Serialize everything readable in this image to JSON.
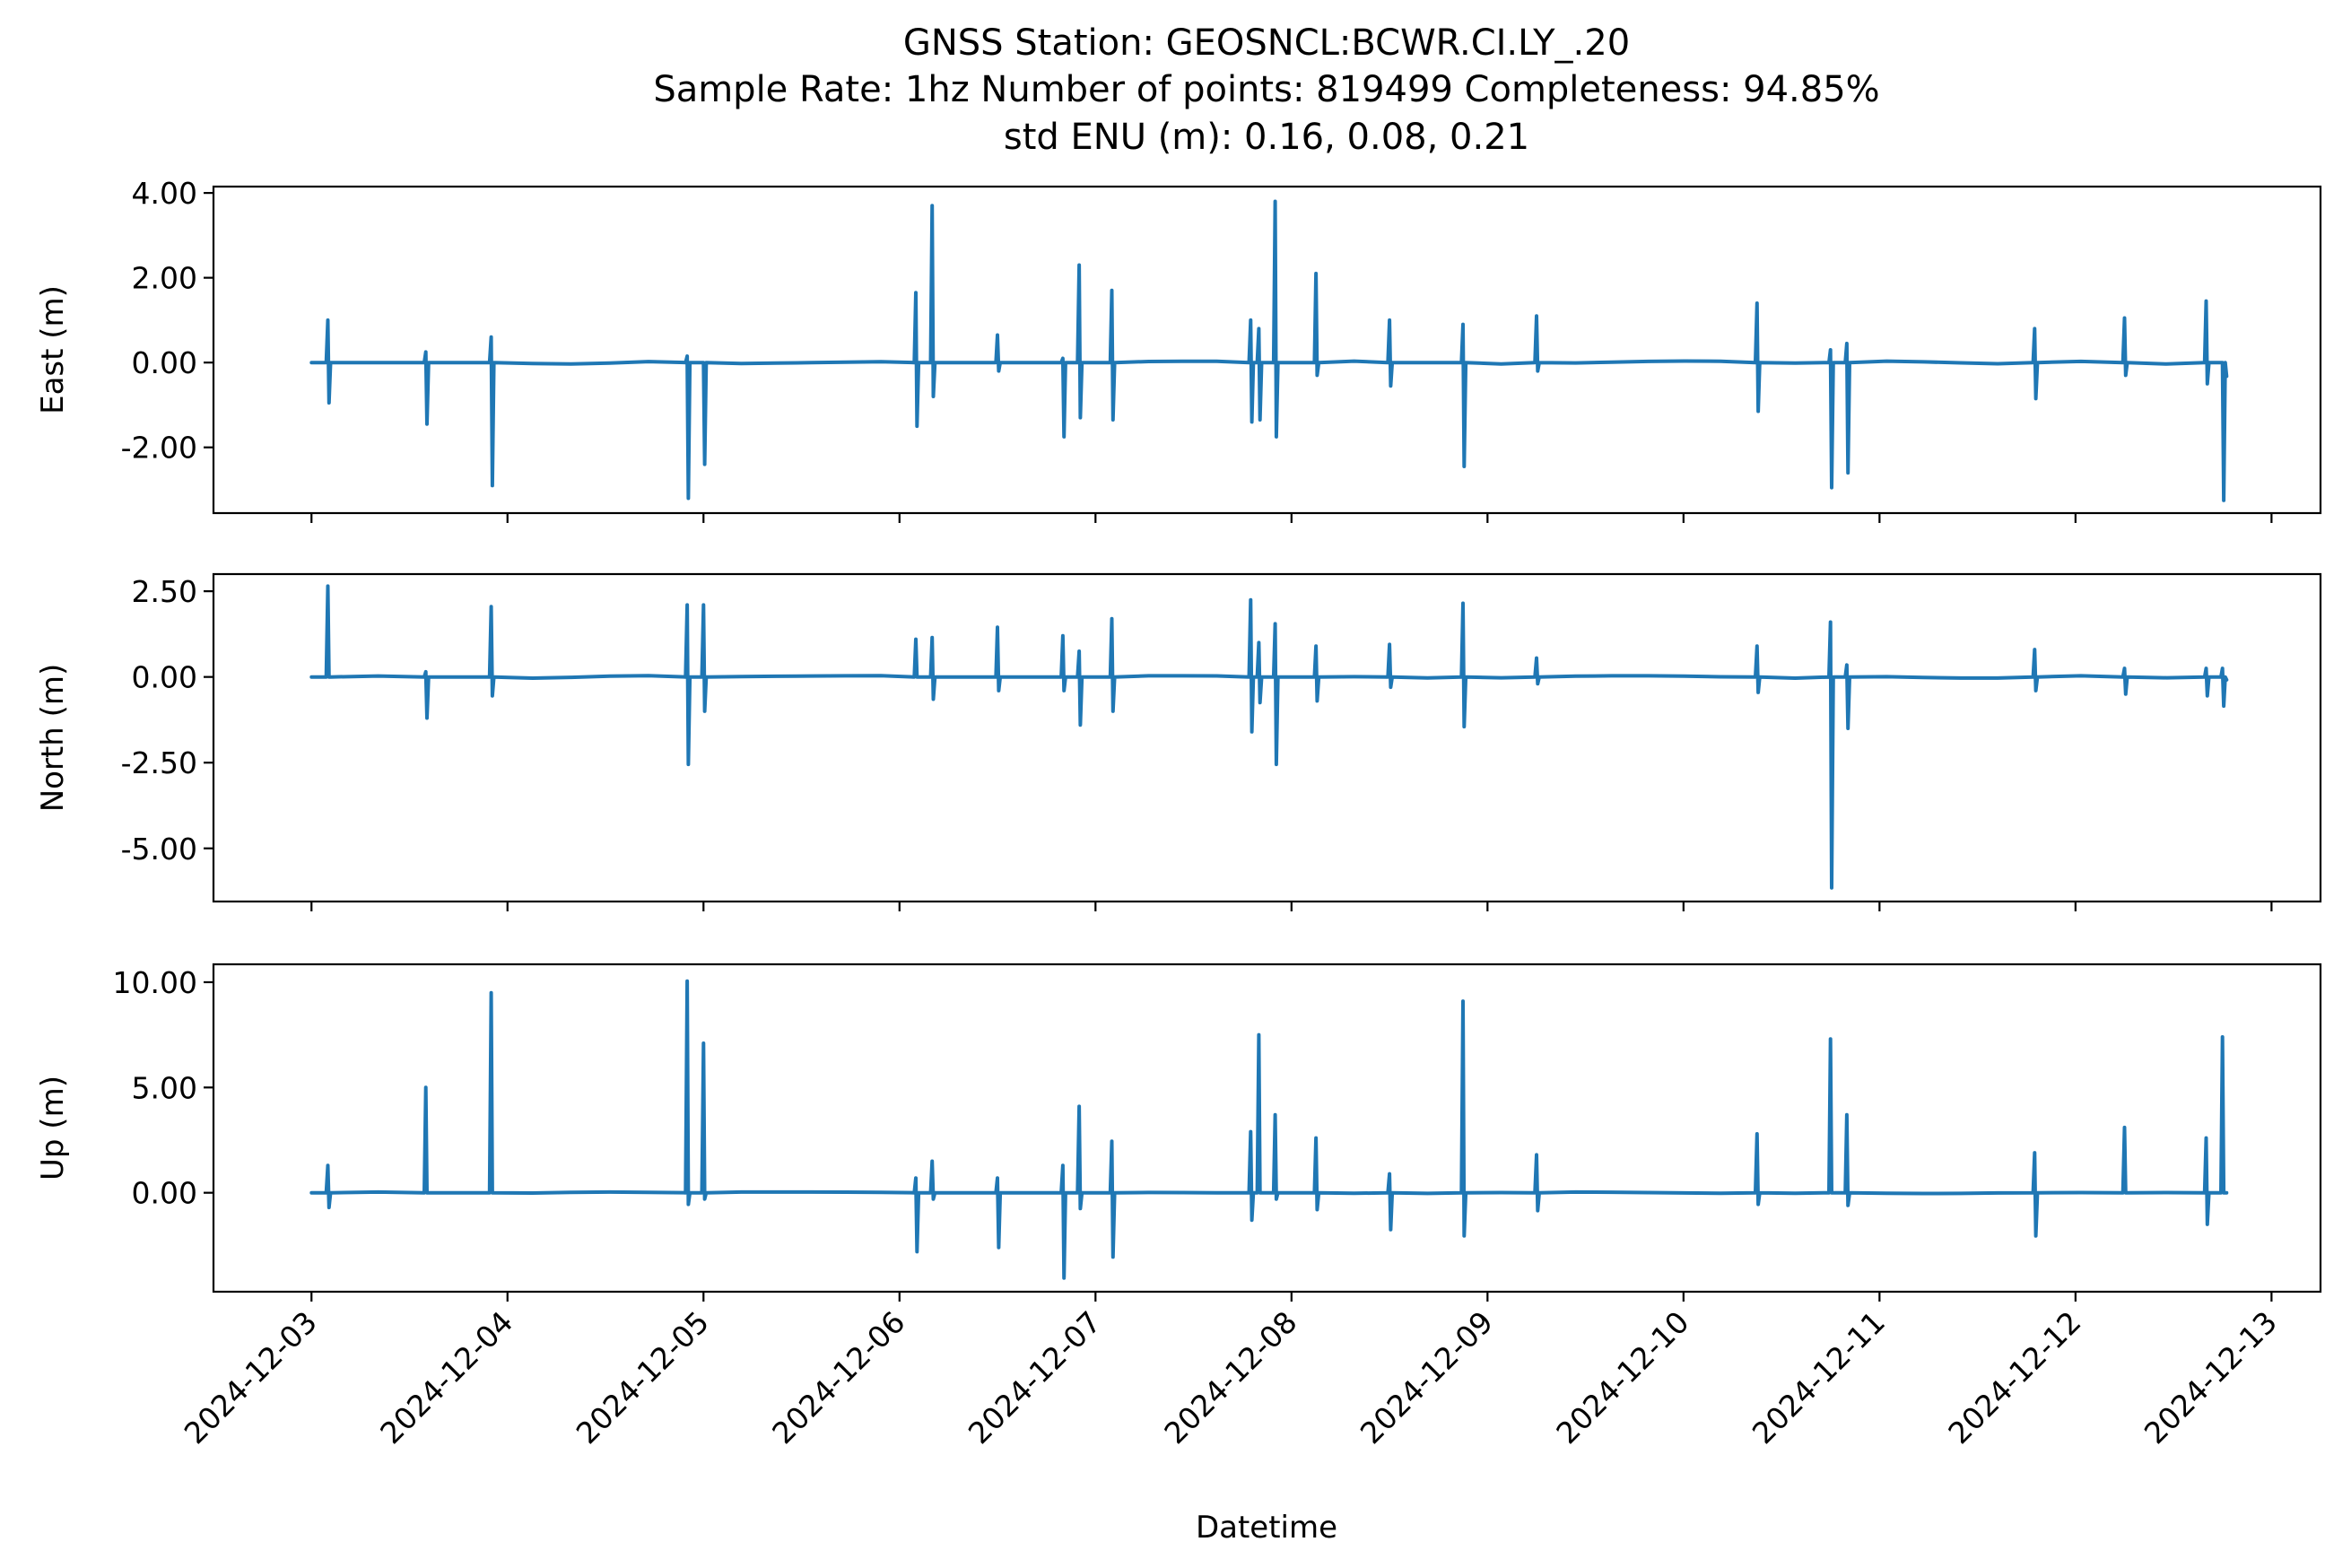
{
  "title_lines": [
    "GNSS Station: GEOSNCL:BCWR.CI.LY_.20",
    "Sample Rate: 1hz   Number of points: 819499    Completeness:  94.85%",
    "std ENU (m):  0.16, 0.08, 0.21"
  ],
  "chart_data": {
    "type": "line",
    "xlabel": "Datetime",
    "x_ticks": [
      "2024-12-03",
      "2024-12-04",
      "2024-12-05",
      "2024-12-06",
      "2024-12-07",
      "2024-12-08",
      "2024-12-09",
      "2024-12-10",
      "2024-12-11",
      "2024-12-12",
      "2024-12-13"
    ],
    "xlim": [
      "2024-12-02T12:00",
      "2024-12-13T06:00"
    ],
    "x_tick_rotation": 45,
    "grid": false,
    "line_color": "#1f77b4",
    "panels": [
      {
        "ylabel": "East (m)",
        "ylim": [
          -3.55,
          4.15
        ],
        "y_ticks": [
          4.0,
          2.0,
          0.0,
          -2.0
        ],
        "y_tick_labels": [
          "4.00",
          "2.00",
          "0.00",
          "-2.00"
        ],
        "spikes": [
          [
            "2024-12-03T02:00",
            1.0,
            -0.95
          ],
          [
            "2024-12-03T14:00",
            0.25,
            -1.45
          ],
          [
            "2024-12-03T22:00",
            0.6,
            -2.9
          ],
          [
            "2024-12-04T22:00",
            0.15,
            -3.2
          ],
          [
            "2024-12-05T00:00",
            0.0,
            -2.4
          ],
          [
            "2024-12-06T02:00",
            1.65,
            -1.5
          ],
          [
            "2024-12-06T04:00",
            3.7,
            -0.8
          ],
          [
            "2024-12-06T12:00",
            0.65,
            -0.2
          ],
          [
            "2024-12-06T20:00",
            0.1,
            -1.75
          ],
          [
            "2024-12-06T22:00",
            2.3,
            -1.3
          ],
          [
            "2024-12-07T02:00",
            1.7,
            -1.35
          ],
          [
            "2024-12-07T19:00",
            1.0,
            -1.4
          ],
          [
            "2024-12-07T20:00",
            0.8,
            -1.35
          ],
          [
            "2024-12-07T22:00",
            3.8,
            -1.75
          ],
          [
            "2024-12-08T03:00",
            2.1,
            -0.3
          ],
          [
            "2024-12-08T12:00",
            1.0,
            -0.55
          ],
          [
            "2024-12-08T21:00",
            0.9,
            -2.45
          ],
          [
            "2024-12-09T06:00",
            1.1,
            -0.2
          ],
          [
            "2024-12-10T09:00",
            1.4,
            -1.15
          ],
          [
            "2024-12-10T18:00",
            0.3,
            -2.95
          ],
          [
            "2024-12-10T20:00",
            0.45,
            -2.6
          ],
          [
            "2024-12-11T19:00",
            0.8,
            -0.85
          ],
          [
            "2024-12-12T06:00",
            1.05,
            -0.3
          ],
          [
            "2024-12-12T16:00",
            1.45,
            -0.5
          ],
          [
            "2024-12-12T18:00",
            0.0,
            -3.25
          ]
        ]
      },
      {
        "ylabel": "North (m)",
        "ylim": [
          -6.55,
          3.0
        ],
        "y_ticks": [
          2.5,
          0.0,
          -2.5,
          -5.0
        ],
        "y_tick_labels": [
          "2.50",
          "0.00",
          "-2.50",
          "-5.00"
        ],
        "spikes": [
          [
            "2024-12-03T02:00",
            2.65,
            0.0
          ],
          [
            "2024-12-03T14:00",
            0.15,
            -1.2
          ],
          [
            "2024-12-03T22:00",
            2.05,
            -0.55
          ],
          [
            "2024-12-04T22:00",
            2.1,
            -2.55
          ],
          [
            "2024-12-05T00:00",
            2.1,
            -1.0
          ],
          [
            "2024-12-06T02:00",
            1.1,
            0.0
          ],
          [
            "2024-12-06T04:00",
            1.15,
            -0.65
          ],
          [
            "2024-12-06T12:00",
            1.45,
            -0.4
          ],
          [
            "2024-12-06T20:00",
            1.2,
            -0.4
          ],
          [
            "2024-12-06T22:00",
            0.75,
            -1.4
          ],
          [
            "2024-12-07T02:00",
            1.7,
            -1.0
          ],
          [
            "2024-12-07T19:00",
            2.25,
            -1.6
          ],
          [
            "2024-12-07T20:00",
            1.0,
            -0.75
          ],
          [
            "2024-12-07T22:00",
            1.55,
            -2.55
          ],
          [
            "2024-12-08T03:00",
            0.9,
            -0.7
          ],
          [
            "2024-12-08T12:00",
            0.95,
            -0.3
          ],
          [
            "2024-12-08T21:00",
            2.15,
            -1.45
          ],
          [
            "2024-12-09T06:00",
            0.55,
            -0.2
          ],
          [
            "2024-12-10T09:00",
            0.9,
            -0.45
          ],
          [
            "2024-12-10T18:00",
            1.6,
            -6.15
          ],
          [
            "2024-12-10T20:00",
            0.35,
            -1.5
          ],
          [
            "2024-12-11T19:00",
            0.8,
            -0.4
          ],
          [
            "2024-12-12T06:00",
            0.25,
            -0.5
          ],
          [
            "2024-12-12T16:00",
            0.25,
            -0.55
          ],
          [
            "2024-12-12T18:00",
            0.25,
            -0.85
          ]
        ]
      },
      {
        "ylabel": "Up (m)",
        "ylim": [
          -4.7,
          10.85
        ],
        "y_ticks": [
          10.0,
          5.0,
          0.0
        ],
        "y_tick_labels": [
          "10.00",
          "5.00",
          "0.00"
        ],
        "spikes": [
          [
            "2024-12-03T02:00",
            1.3,
            -0.7
          ],
          [
            "2024-12-03T14:00",
            5.0,
            0.0
          ],
          [
            "2024-12-03T22:00",
            9.5,
            0.0
          ],
          [
            "2024-12-04T22:00",
            10.05,
            -0.55
          ],
          [
            "2024-12-05T00:00",
            7.1,
            -0.3
          ],
          [
            "2024-12-06T02:00",
            0.7,
            -2.8
          ],
          [
            "2024-12-06T04:00",
            1.5,
            -0.3
          ],
          [
            "2024-12-06T12:00",
            0.7,
            -2.6
          ],
          [
            "2024-12-06T20:00",
            1.3,
            -4.05
          ],
          [
            "2024-12-06T22:00",
            4.1,
            -0.75
          ],
          [
            "2024-12-07T02:00",
            2.45,
            -3.05
          ],
          [
            "2024-12-07T19:00",
            2.9,
            -1.3
          ],
          [
            "2024-12-07T20:00",
            7.5,
            0.0
          ],
          [
            "2024-12-07T22:00",
            3.7,
            -0.3
          ],
          [
            "2024-12-08T03:00",
            2.6,
            -0.8
          ],
          [
            "2024-12-08T12:00",
            0.9,
            -1.75
          ],
          [
            "2024-12-08T21:00",
            9.1,
            -2.05
          ],
          [
            "2024-12-09T06:00",
            1.8,
            -0.85
          ],
          [
            "2024-12-10T09:00",
            2.8,
            -0.55
          ],
          [
            "2024-12-10T18:00",
            7.3,
            0.0
          ],
          [
            "2024-12-10T20:00",
            3.7,
            -0.6
          ],
          [
            "2024-12-11T19:00",
            1.9,
            -2.05
          ],
          [
            "2024-12-12T06:00",
            3.1,
            0.0
          ],
          [
            "2024-12-12T16:00",
            2.6,
            -1.5
          ],
          [
            "2024-12-12T18:00",
            7.4,
            0.0
          ]
        ]
      }
    ]
  }
}
